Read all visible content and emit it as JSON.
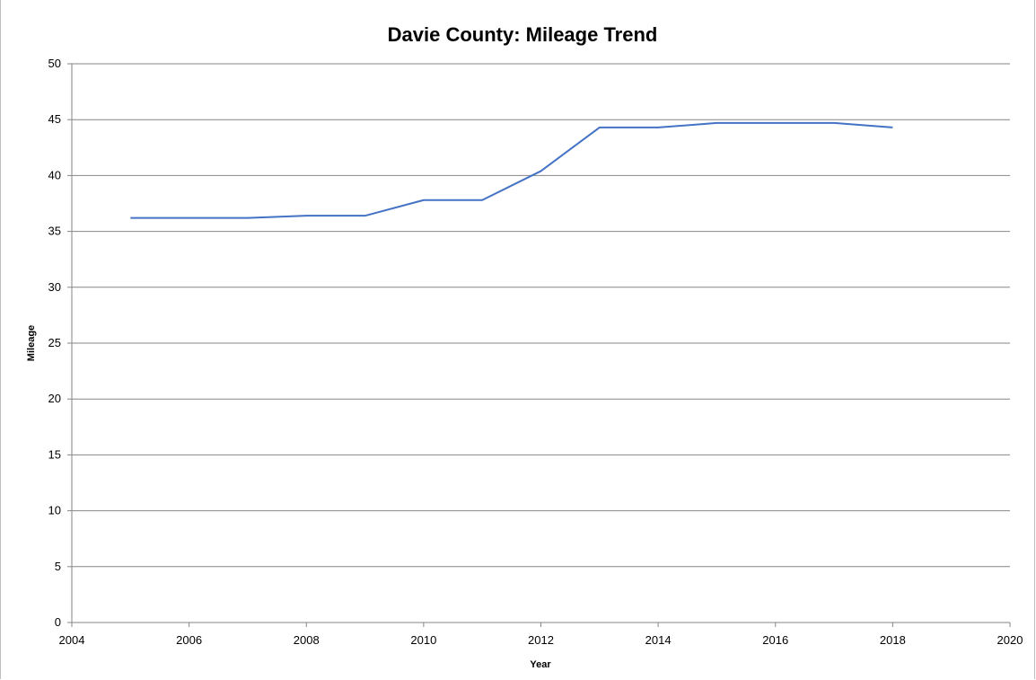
{
  "chart_data": {
    "type": "line",
    "title": "Davie County: Mileage Trend",
    "xlabel": "Year",
    "ylabel": "Mileage",
    "xlim": [
      2004,
      2020
    ],
    "ylim": [
      0,
      50
    ],
    "x_ticks": [
      "2004",
      "2006",
      "2008",
      "2010",
      "2012",
      "2014",
      "2016",
      "2018",
      "2020"
    ],
    "y_ticks": [
      "0",
      "5",
      "10",
      "15",
      "20",
      "25",
      "30",
      "35",
      "40",
      "45",
      "50"
    ],
    "grid": "horizontal",
    "legend": "none",
    "series": [
      {
        "x": [
          2005,
          2006,
          2007,
          2008,
          2009,
          2010,
          2011,
          2012,
          2013,
          2014,
          2015,
          2016,
          2017,
          2018
        ],
        "y": [
          36.2,
          36.2,
          36.2,
          36.4,
          36.4,
          37.8,
          37.8,
          40.4,
          44.3,
          44.3,
          44.7,
          44.7,
          44.7,
          44.3
        ],
        "color": "#4472c4"
      }
    ],
    "colors": {
      "line": "#4472c4",
      "grid": "#868686",
      "axis": "#868686"
    }
  }
}
